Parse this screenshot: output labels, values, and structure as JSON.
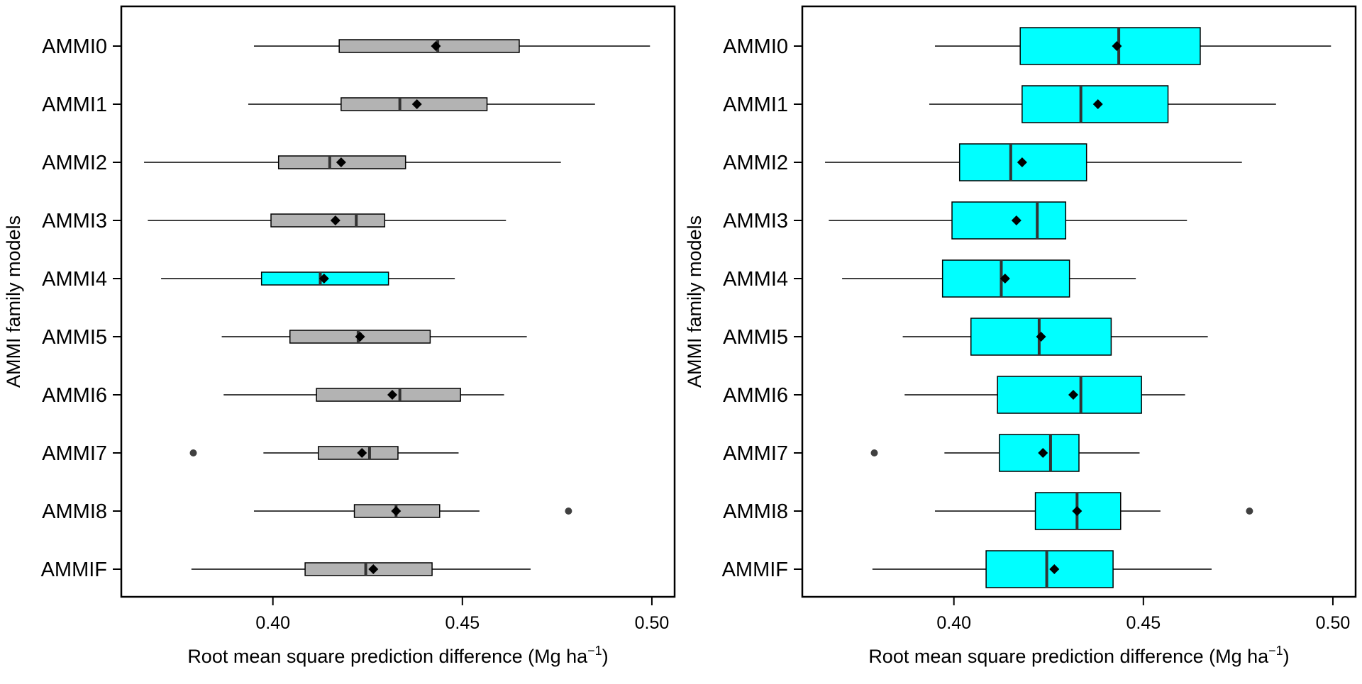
{
  "chart_data": [
    {
      "type": "boxplot",
      "orientation": "horizontal",
      "title": "",
      "xlabel": "Root mean square prediction difference (Mg ha",
      "xlabel_superscript": "−1",
      "xlabel_suffix": ")",
      "ylabel": "AMMI family models",
      "xlim": [
        0.36,
        0.506
      ],
      "x_ticks": [
        "0.40",
        "0.45",
        "0.50"
      ],
      "x_tick_values": [
        0.4,
        0.45,
        0.5
      ],
      "box_style": "narrow",
      "default_fill": "#b3b3b3",
      "highlight_fill": "#00ffff",
      "highlight": "AMMI4",
      "categories": [
        "AMMI0",
        "AMMI1",
        "AMMI2",
        "AMMI3",
        "AMMI4",
        "AMMI5",
        "AMMI6",
        "AMMI7",
        "AMMI8",
        "AMMIF"
      ],
      "boxes": [
        {
          "name": "AMMI0",
          "whisker_low": 0.395,
          "q1": 0.4175,
          "median": 0.4435,
          "q3": 0.465,
          "whisker_high": 0.4995,
          "mean": 0.443,
          "outliers": []
        },
        {
          "name": "AMMI1",
          "whisker_low": 0.3935,
          "q1": 0.418,
          "median": 0.4335,
          "q3": 0.4565,
          "whisker_high": 0.485,
          "mean": 0.438,
          "outliers": []
        },
        {
          "name": "AMMI2",
          "whisker_low": 0.366,
          "q1": 0.4015,
          "median": 0.415,
          "q3": 0.435,
          "whisker_high": 0.476,
          "mean": 0.418,
          "outliers": []
        },
        {
          "name": "AMMI3",
          "whisker_low": 0.367,
          "q1": 0.3995,
          "median": 0.422,
          "q3": 0.4295,
          "whisker_high": 0.4615,
          "mean": 0.4165,
          "outliers": []
        },
        {
          "name": "AMMI4",
          "whisker_low": 0.3705,
          "q1": 0.397,
          "median": 0.4125,
          "q3": 0.4305,
          "whisker_high": 0.448,
          "mean": 0.4135,
          "outliers": []
        },
        {
          "name": "AMMI5",
          "whisker_low": 0.3865,
          "q1": 0.4045,
          "median": 0.4225,
          "q3": 0.4415,
          "whisker_high": 0.467,
          "mean": 0.423,
          "outliers": []
        },
        {
          "name": "AMMI6",
          "whisker_low": 0.387,
          "q1": 0.4115,
          "median": 0.4335,
          "q3": 0.4495,
          "whisker_high": 0.461,
          "mean": 0.4315,
          "outliers": []
        },
        {
          "name": "AMMI7",
          "whisker_low": 0.3975,
          "q1": 0.412,
          "median": 0.4255,
          "q3": 0.433,
          "whisker_high": 0.449,
          "mean": 0.4235,
          "outliers": [
            0.379
          ]
        },
        {
          "name": "AMMI8",
          "whisker_low": 0.395,
          "q1": 0.4215,
          "median": 0.4325,
          "q3": 0.444,
          "whisker_high": 0.4545,
          "mean": 0.4325,
          "outliers": [
            0.478
          ]
        },
        {
          "name": "AMMIF",
          "whisker_low": 0.3785,
          "q1": 0.4085,
          "median": 0.4245,
          "q3": 0.442,
          "whisker_high": 0.468,
          "mean": 0.4265,
          "outliers": []
        }
      ]
    },
    {
      "type": "boxplot",
      "orientation": "horizontal",
      "title": "",
      "xlabel": "Root mean square prediction difference (Mg ha",
      "xlabel_superscript": "−1",
      "xlabel_suffix": ")",
      "ylabel": "AMMI family models",
      "xlim": [
        0.36,
        0.506
      ],
      "x_ticks": [
        "0.40",
        "0.45",
        "0.50"
      ],
      "x_tick_values": [
        0.4,
        0.45,
        0.5
      ],
      "box_style": "wide",
      "default_fill": "#00ffff",
      "highlight_fill": "#00ffff",
      "highlight": "",
      "categories": [
        "AMMI0",
        "AMMI1",
        "AMMI2",
        "AMMI3",
        "AMMI4",
        "AMMI5",
        "AMMI6",
        "AMMI7",
        "AMMI8",
        "AMMIF"
      ],
      "boxes": [
        {
          "name": "AMMI0",
          "whisker_low": 0.395,
          "q1": 0.4175,
          "median": 0.4435,
          "q3": 0.465,
          "whisker_high": 0.4995,
          "mean": 0.443,
          "outliers": []
        },
        {
          "name": "AMMI1",
          "whisker_low": 0.3935,
          "q1": 0.418,
          "median": 0.4335,
          "q3": 0.4565,
          "whisker_high": 0.485,
          "mean": 0.438,
          "outliers": []
        },
        {
          "name": "AMMI2",
          "whisker_low": 0.366,
          "q1": 0.4015,
          "median": 0.415,
          "q3": 0.435,
          "whisker_high": 0.476,
          "mean": 0.418,
          "outliers": []
        },
        {
          "name": "AMMI3",
          "whisker_low": 0.367,
          "q1": 0.3995,
          "median": 0.422,
          "q3": 0.4295,
          "whisker_high": 0.4615,
          "mean": 0.4165,
          "outliers": []
        },
        {
          "name": "AMMI4",
          "whisker_low": 0.3705,
          "q1": 0.397,
          "median": 0.4125,
          "q3": 0.4305,
          "whisker_high": 0.448,
          "mean": 0.4135,
          "outliers": []
        },
        {
          "name": "AMMI5",
          "whisker_low": 0.3865,
          "q1": 0.4045,
          "median": 0.4225,
          "q3": 0.4415,
          "whisker_high": 0.467,
          "mean": 0.423,
          "outliers": []
        },
        {
          "name": "AMMI6",
          "whisker_low": 0.387,
          "q1": 0.4115,
          "median": 0.4335,
          "q3": 0.4495,
          "whisker_high": 0.461,
          "mean": 0.4315,
          "outliers": []
        },
        {
          "name": "AMMI7",
          "whisker_low": 0.3975,
          "q1": 0.412,
          "median": 0.4255,
          "q3": 0.433,
          "whisker_high": 0.449,
          "mean": 0.4235,
          "outliers": [
            0.379
          ]
        },
        {
          "name": "AMMI8",
          "whisker_low": 0.395,
          "q1": 0.4215,
          "median": 0.4325,
          "q3": 0.444,
          "whisker_high": 0.4545,
          "mean": 0.4325,
          "outliers": [
            0.478
          ]
        },
        {
          "name": "AMMIF",
          "whisker_low": 0.3785,
          "q1": 0.4085,
          "median": 0.4245,
          "q3": 0.442,
          "whisker_high": 0.468,
          "mean": 0.4265,
          "outliers": []
        }
      ]
    }
  ]
}
